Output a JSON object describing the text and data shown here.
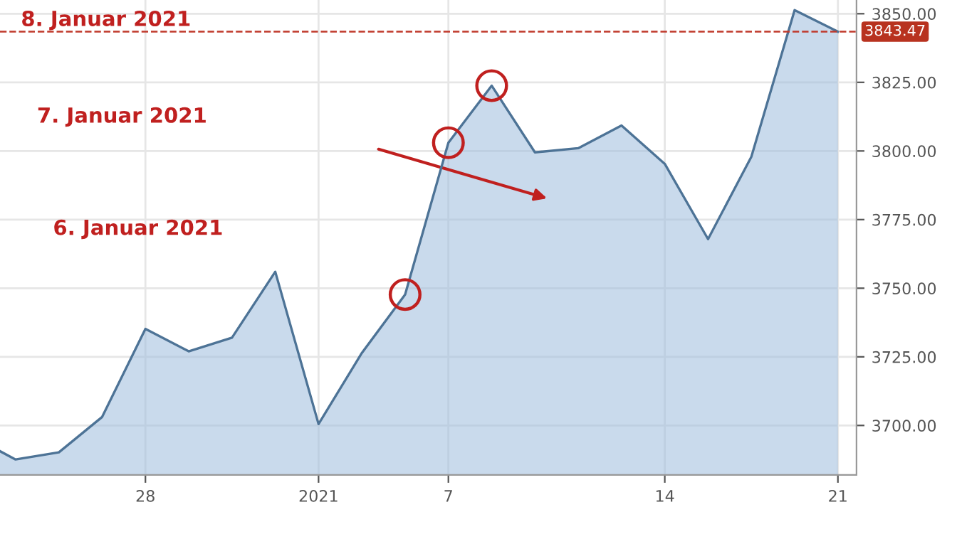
{
  "chart_data": {
    "type": "area",
    "categories": [
      null,
      null,
      null,
      null,
      "28",
      null,
      null,
      null,
      "2021",
      null,
      null,
      "7",
      null,
      null,
      null,
      null,
      "14",
      null,
      null,
      null,
      "21"
    ],
    "series": [
      {
        "color": "#4d7396",
        "values": [
          3696,
          3687.6,
          3690.2,
          3703.1,
          3735.2,
          3727,
          3732,
          3756,
          3700.5,
          3726.4,
          3747.7,
          3803,
          3823.8,
          3799.5,
          3801,
          3809.3,
          3795.3,
          3767.9,
          3797.9,
          3851.3,
          3843.47
        ]
      }
    ],
    "ylim": [
      3682,
      3855
    ],
    "yticks": [
      {
        "value": 3700,
        "label": "3700.00"
      },
      {
        "value": 3725,
        "label": "3725.00"
      },
      {
        "value": 3750,
        "label": "3750.00"
      },
      {
        "value": 3775,
        "label": "3775.00"
      },
      {
        "value": 3800,
        "label": "3800.00"
      },
      {
        "value": 3825,
        "label": "3825.00"
      },
      {
        "value": 3850,
        "label": "3850.00"
      }
    ],
    "ref_lines": [
      {
        "axis": "y",
        "value": 3843.47,
        "label": "3843.47",
        "color": "#c0392b",
        "line_style": "dashed"
      }
    ],
    "annotations": [
      "8. Januar 2021",
      "7. Januar 2021",
      "6. Januar 2021"
    ],
    "grid": true,
    "legend": false,
    "marker": "none",
    "line_style": "solid"
  }
}
